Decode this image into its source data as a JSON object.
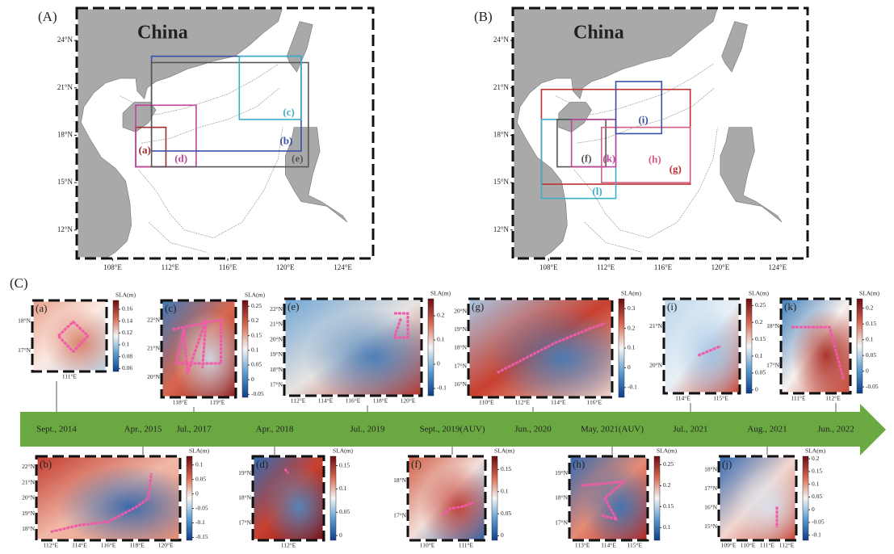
{
  "maps": [
    {
      "label": "(A)",
      "title": "China",
      "lonlim": [
        105.5,
        126.1
      ],
      "latlim": [
        10.2,
        26.05
      ],
      "lonticks": [
        {
          "value": 108,
          "label": "108°E"
        },
        {
          "value": 112,
          "label": "112°E"
        },
        {
          "value": 116,
          "label": "116°E"
        },
        {
          "value": 120,
          "label": "120°E"
        },
        {
          "value": 124,
          "label": "124°E"
        }
      ],
      "latticks": [
        {
          "value": 24,
          "label": "24°N"
        },
        {
          "value": 21,
          "label": "21°N"
        },
        {
          "value": 18,
          "label": "18°N"
        },
        {
          "value": 15,
          "label": "15°N"
        },
        {
          "value": 12,
          "label": "12°N"
        }
      ],
      "boxes": [
        {
          "label": "(a)",
          "color": "#9b2d2d",
          "lon": [
            109.6,
            111.7
          ],
          "lat": [
            16.0,
            18.5
          ]
        },
        {
          "label": "(d)",
          "color": "#c0449a",
          "lon": [
            109.6,
            113.8
          ],
          "lat": [
            16.0,
            19.9
          ]
        },
        {
          "label": "(b)",
          "color": "#3c4fa8",
          "lon": [
            110.7,
            121.1
          ],
          "lat": [
            17.0,
            23.0
          ]
        },
        {
          "label": "(e)",
          "color": "#555555",
          "lon": [
            110.7,
            121.6
          ],
          "lat": [
            16.0,
            22.6
          ]
        },
        {
          "label": "(c)",
          "color": "#3ab0c8",
          "lon": [
            116.8,
            121.1
          ],
          "lat": [
            19.0,
            23.0
          ]
        }
      ]
    },
    {
      "label": "(B)",
      "title": "China",
      "lonlim": [
        105.5,
        126.1
      ],
      "latlim": [
        10.2,
        26.05
      ],
      "lonticks": [
        {
          "value": 108,
          "label": "108°E"
        },
        {
          "value": 112,
          "label": "112°E"
        },
        {
          "value": 116,
          "label": "116°E"
        },
        {
          "value": 120,
          "label": "120°E"
        },
        {
          "value": 124,
          "label": "124°E"
        }
      ],
      "latticks": [
        {
          "value": 24,
          "label": "24°N"
        },
        {
          "value": 21,
          "label": "21°N"
        },
        {
          "value": 18,
          "label": "18°N"
        },
        {
          "value": 15,
          "label": "15°N"
        },
        {
          "value": 12,
          "label": "12°N"
        }
      ],
      "boxes": [
        {
          "label": "(g)",
          "color": "#c03030",
          "lon": [
            107.5,
            117.9
          ],
          "lat": [
            14.9,
            20.9
          ]
        },
        {
          "label": "(l)",
          "color": "#3ab0c8",
          "lon": [
            107.5,
            112.7
          ],
          "lat": [
            14.0,
            19.0
          ]
        },
        {
          "label": "(f)",
          "color": "#555555",
          "lon": [
            108.6,
            112.0
          ],
          "lat": [
            16.0,
            19.0
          ]
        },
        {
          "label": "(k)",
          "color": "#c0449a",
          "lon": [
            109.6,
            112.7
          ],
          "lat": [
            16.0,
            19.0
          ]
        },
        {
          "label": "(h)",
          "color": "#d06080",
          "lon": [
            111.7,
            117.9
          ],
          "lat": [
            15.0,
            18.5
          ]
        },
        {
          "label": "(i)",
          "color": "#3c4fa8",
          "lon": [
            112.7,
            115.9
          ],
          "lat": [
            18.1,
            21.4
          ]
        }
      ]
    }
  ],
  "timeline": {
    "label": "(C)",
    "events": [
      "Sept., 2014",
      "Apr., 2015",
      "Jul., 2017",
      "Apr., 2018",
      "Jul., 2019",
      "Sept., 2019(AUV)",
      "Jun., 2020",
      "May, 2021(AUV)",
      "Jul., 2021",
      "Aug., 2021",
      "Jun., 2022"
    ]
  },
  "insets": [
    {
      "label": "(a)",
      "colorbar_label": "SLA(m)",
      "colorbar_lim": [
        0.055,
        0.175
      ],
      "colorbar_ticks": [
        0.16,
        0.14,
        0.12,
        0.1,
        0.08,
        0.06
      ],
      "lat_labels": [
        "18°N",
        "17°N"
      ],
      "lon_labels": [
        "111°E"
      ]
    },
    {
      "label": "(b)",
      "colorbar_label": "SLA(m)",
      "colorbar_lim": [
        -0.16,
        0.13
      ],
      "colorbar_ticks": [
        0.1,
        0.05,
        0,
        -0.05,
        -0.1,
        -0.15
      ],
      "lat_labels": [
        "22°N",
        "21°N",
        "20°N",
        "19°N",
        "18°N"
      ],
      "lon_labels": [
        "112°E",
        "114°E",
        "116°E",
        "118°E",
        "120°E"
      ]
    },
    {
      "label": "(c)",
      "colorbar_label": "SLA(m)",
      "colorbar_lim": [
        -0.06,
        0.27
      ],
      "colorbar_ticks": [
        0.25,
        0.2,
        0.15,
        0.1,
        0.05,
        0,
        -0.05
      ],
      "lat_labels": [
        "22°N",
        "21°N",
        "20°N"
      ],
      "lon_labels": [
        "118°E",
        "119°E"
      ]
    },
    {
      "label": "(d)",
      "colorbar_label": "SLA(m)",
      "colorbar_lim": [
        -0.01,
        0.17
      ],
      "colorbar_ticks": [
        0.15,
        0.1,
        0.05,
        0
      ],
      "lat_labels": [
        "19°N",
        "18°N",
        "17°N"
      ],
      "lon_labels": [
        "112°E"
      ]
    },
    {
      "label": "(e)",
      "colorbar_label": "SLA(m)",
      "colorbar_lim": [
        -0.13,
        0.27
      ],
      "colorbar_ticks": [
        0.2,
        0.1,
        0,
        -0.1
      ],
      "lat_labels": [
        "22°N",
        "21°N",
        "20°N",
        "19°N",
        "18°N",
        "17°N"
      ],
      "lon_labels": [
        "112°E",
        "114°E",
        "116°E",
        "118°E",
        "120°E"
      ]
    },
    {
      "label": "(f)",
      "colorbar_label": "SLA(m)",
      "colorbar_lim": [
        -0.01,
        0.18
      ],
      "colorbar_ticks": [
        0.15,
        0.1,
        0.05,
        0
      ],
      "lat_labels": [
        "18°N",
        "17°N"
      ],
      "lon_labels": [
        "110°E",
        "111°E"
      ]
    },
    {
      "label": "(g)",
      "colorbar_label": "SLA(m)",
      "colorbar_lim": [
        -0.15,
        0.35
      ],
      "colorbar_ticks": [
        0.3,
        0.2,
        0.1,
        0,
        -0.1
      ],
      "lat_labels": [
        "20°N",
        "19°N",
        "18°N",
        "17°N",
        "16°N"
      ],
      "lon_labels": [
        "110°E",
        "112°E",
        "114°E",
        "116°E"
      ]
    },
    {
      "label": "(h)",
      "colorbar_label": "SLA(m)",
      "colorbar_lim": [
        0.07,
        0.27
      ],
      "colorbar_ticks": [
        0.25,
        0.2,
        0.15,
        0.1
      ],
      "lat_labels": [
        "19°N",
        "18°N",
        "17°N"
      ],
      "lon_labels": [
        "113°E",
        "114°E",
        "115°E"
      ]
    },
    {
      "label": "(i)",
      "colorbar_label": "SLA(m)",
      "colorbar_lim": [
        -0.01,
        0.27
      ],
      "colorbar_ticks": [
        0.25,
        0.2,
        0.15,
        0.1,
        0.05,
        0
      ],
      "lat_labels": [
        "21°N",
        "20°N"
      ],
      "lon_labels": [
        "114°E",
        "115°E"
      ]
    },
    {
      "label": "(j)",
      "colorbar_label": "SLA(m)",
      "colorbar_lim": [
        -0.12,
        0.21
      ],
      "colorbar_ticks": [
        0.2,
        0.15,
        0.1,
        0.05,
        0,
        -0.05,
        -0.1
      ],
      "lat_labels": [
        "18°N",
        "17°N",
        "16°N",
        "15°N"
      ],
      "lon_labels": [
        "109°E",
        "110°E",
        "111°E",
        "112°E"
      ]
    },
    {
      "label": "(k)",
      "colorbar_label": "SLA(m)",
      "colorbar_lim": [
        -0.07,
        0.23
      ],
      "colorbar_ticks": [
        0.2,
        0.15,
        0.1,
        0.05,
        0,
        -0.05
      ],
      "lat_labels": [
        "18°N",
        "17°N"
      ],
      "lon_labels": [
        "111°E",
        "112°E"
      ]
    }
  ]
}
